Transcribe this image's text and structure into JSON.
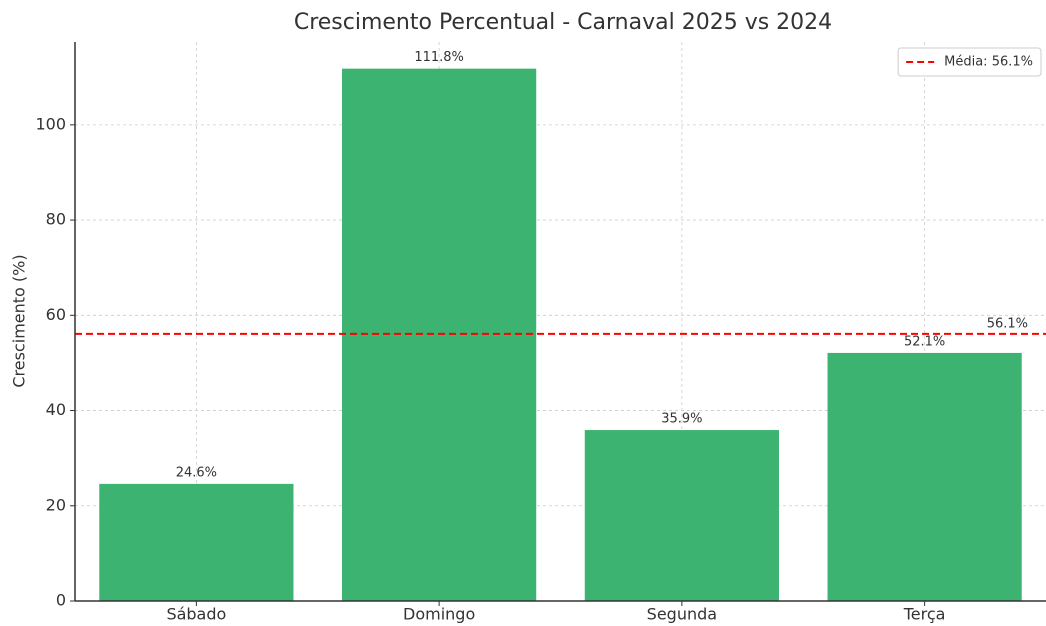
{
  "chart_data": {
    "type": "bar",
    "title": "Crescimento Percentual - Carnaval 2025 vs 2024",
    "y_label": "Crescimento (%)",
    "categories": [
      "Sábado",
      "Domingo",
      "Segunda",
      "Terça"
    ],
    "values": [
      24.6,
      111.8,
      35.9,
      52.1
    ],
    "value_labels": [
      "24.6%",
      "111.8%",
      "35.9%",
      "52.1%"
    ],
    "color": "#3cb371",
    "ylim": [
      0,
      117.4
    ],
    "yticks": [
      0,
      20,
      40,
      60,
      80,
      100
    ],
    "grid": true,
    "reference_line": {
      "value": 56.1,
      "label": "56.1%",
      "legend": "Média: 56.1%",
      "color": "#ff0000"
    },
    "legend_position": "upper right"
  }
}
